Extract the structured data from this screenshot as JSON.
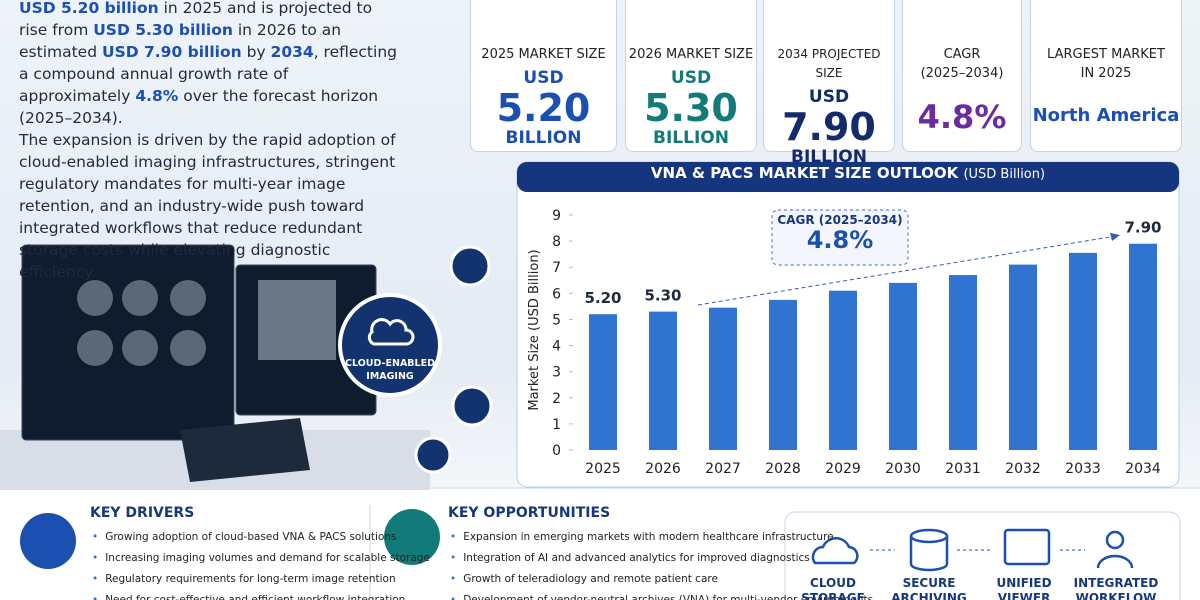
{
  "intro": {
    "paragraph1": [
      "USD 5.20 billion",
      " in 2025 and is projected to rise from ",
      "USD 5.30 billion",
      " in 2026 to an estimated ",
      "USD 7.90 billion",
      " by ",
      "2034",
      ", reflecting a compound annual growth rate of approximately ",
      "4.8%",
      " over the forecast horizon (2025–2034)."
    ],
    "paragraph2": "The expansion is driven by the rapid adoption of cloud-enabled imaging infrastructures, stringent regulatory mandates for multi-year image retention, and an industry-wide push toward integrated workflows that reduce redundant storage costs while elevating diagnostic efficiency."
  },
  "stats": [
    {
      "label": "2025 MARKET SIZE",
      "unit": "USD",
      "value": "5.20",
      "suffix": "BILLION"
    },
    {
      "label": "2026 MARKET SIZE",
      "unit": "USD",
      "value": "5.30",
      "suffix": "BILLION"
    },
    {
      "label": "2034 PROJECTED SIZE",
      "unit": "USD",
      "value": "7.90",
      "suffix": "BILLION"
    },
    {
      "label": "CAGR",
      "sublabel": "(2025–2034)",
      "value": "4.8%"
    },
    {
      "label": "LARGEST MARKET",
      "sublabel": "IN 2025",
      "value": "North America"
    }
  ],
  "hero": {
    "badge": "CLOUD-ENABLED IMAGING"
  },
  "chart_data": {
    "type": "bar",
    "title": "VNA & PACS MARKET SIZE OUTLOOK",
    "subtitle": "(USD Billion)",
    "y_label": "Market Size (USD Billion)",
    "categories": [
      "2025",
      "2026",
      "2027",
      "2028",
      "2029",
      "2030",
      "2031",
      "2032",
      "2033",
      "2034"
    ],
    "values": [
      5.2,
      5.3,
      5.45,
      5.75,
      6.1,
      6.4,
      6.7,
      7.1,
      7.55,
      7.9
    ],
    "value_labels": [
      "5.20",
      "5.30",
      null,
      null,
      null,
      null,
      null,
      null,
      null,
      "7.90"
    ],
    "color": "#2f74d0",
    "ylim": [
      0,
      9
    ],
    "yticks": [
      0,
      1,
      2,
      3,
      4,
      5,
      6,
      7,
      8,
      9
    ],
    "grid": false,
    "annotation": {
      "title": "CAGR (2025–2034)",
      "value": "4.8%"
    }
  },
  "key_drivers": {
    "title": "KEY DRIVERS",
    "items": [
      "Growing adoption of cloud-based VNA & PACS solutions",
      "Increasing imaging volumes and demand for scalable storage",
      "Regulatory requirements for long-term image retention",
      "Need for cost-effective and efficient workflow integration"
    ]
  },
  "key_opportunities": {
    "title": "KEY OPPORTUNITIES",
    "items": [
      "Expansion in emerging markets with modern healthcare infrastructure",
      "Integration of AI and advanced analytics for improved diagnostics",
      "Growth of teleradiology and remote patient care",
      "Development of vendor-neutral archives (VNA) for multi-vendor environments"
    ]
  },
  "workflow": [
    [
      "CLOUD",
      "STORAGE"
    ],
    [
      "SECURE",
      "ARCHIVING"
    ],
    [
      "UNIFIED",
      "VIEWER"
    ],
    [
      "INTEGRATED",
      "WORKFLOW"
    ]
  ]
}
